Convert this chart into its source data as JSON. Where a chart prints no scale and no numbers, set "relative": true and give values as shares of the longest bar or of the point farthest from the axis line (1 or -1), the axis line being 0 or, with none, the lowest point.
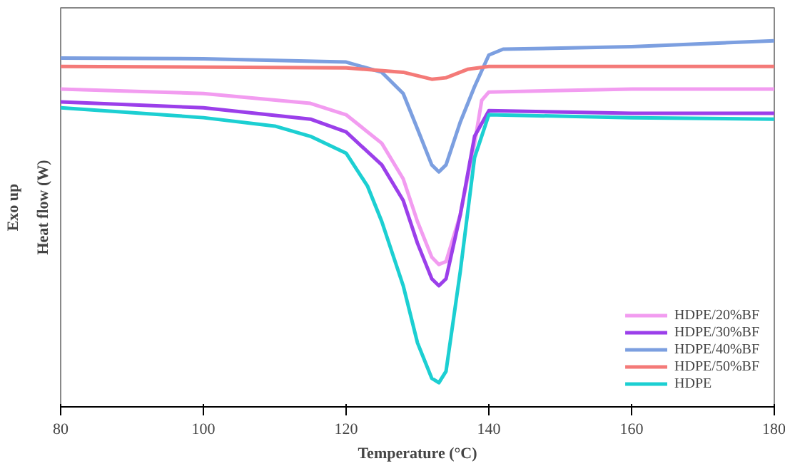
{
  "chart_data": {
    "type": "line",
    "relative": true,
    "xlabel": "Temperature (°C)",
    "ylabel": "Heat flow (W)",
    "annotations": [
      "Exo up"
    ],
    "xlim": [
      80,
      180
    ],
    "xticks": [
      80,
      100,
      120,
      140,
      160,
      180
    ],
    "grid": false,
    "legend": "bottom right",
    "line_style": "solid",
    "marker": "none",
    "series": [
      {
        "name": "HDPE/20%BF",
        "color": "#f29cf0",
        "x": [
          80,
          100,
          115,
          120,
          125,
          128,
          130,
          132,
          133,
          134,
          136,
          138,
          139,
          140,
          160,
          180
        ],
        "values": [
          0.868,
          0.856,
          0.829,
          0.798,
          0.72,
          0.623,
          0.506,
          0.409,
          0.389,
          0.397,
          0.525,
          0.72,
          0.837,
          0.86,
          0.868,
          0.868
        ]
      },
      {
        "name": "HDPE/30%BF",
        "color": "#9b3fea",
        "x": [
          80,
          100,
          115,
          120,
          125,
          128,
          130,
          132,
          133,
          134,
          136,
          138,
          140,
          160,
          180
        ],
        "values": [
          0.833,
          0.817,
          0.786,
          0.751,
          0.661,
          0.564,
          0.447,
          0.35,
          0.331,
          0.35,
          0.525,
          0.739,
          0.809,
          0.802,
          0.802
        ]
      },
      {
        "name": "HDPE/40%BF",
        "color": "#7c9fe0",
        "x": [
          80,
          100,
          120,
          125,
          128,
          130,
          132,
          133,
          134,
          136,
          138,
          140,
          142,
          160,
          180
        ],
        "values": [
          0.953,
          0.951,
          0.942,
          0.914,
          0.856,
          0.759,
          0.661,
          0.642,
          0.661,
          0.778,
          0.875,
          0.961,
          0.977,
          0.984,
          1
        ]
      },
      {
        "name": "HDPE/50%BF",
        "color": "#f47a78",
        "x": [
          80,
          120,
          128,
          132,
          134,
          137,
          140,
          180
        ],
        "values": [
          0.93,
          0.926,
          0.914,
          0.895,
          0.899,
          0.922,
          0.93,
          0.93
        ]
      },
      {
        "name": "HDPE",
        "color": "#1ccfd2",
        "x": [
          80,
          100,
          110,
          115,
          120,
          123,
          125,
          128,
          130,
          132,
          133,
          134,
          136,
          138,
          140,
          160,
          180
        ],
        "values": [
          0.817,
          0.79,
          0.767,
          0.739,
          0.693,
          0.603,
          0.506,
          0.331,
          0.175,
          0.078,
          0.066,
          0.097,
          0.37,
          0.681,
          0.798,
          0.79,
          0.786
        ]
      }
    ]
  }
}
